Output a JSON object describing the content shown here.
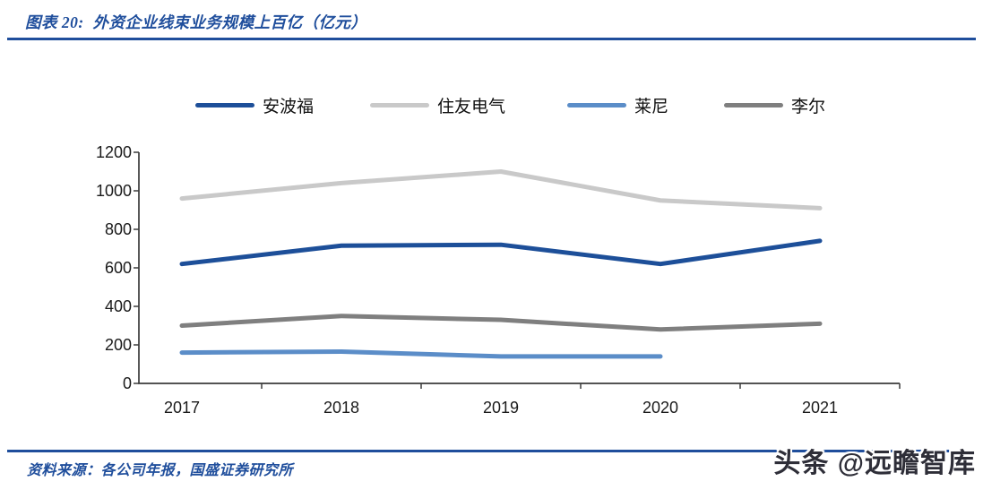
{
  "header": {
    "title": "图表 20:  外资企业线束业务规模上百亿（亿元）"
  },
  "footer": {
    "source": "资料来源：各公司年报，国盛证券研究所"
  },
  "watermark": {
    "text": "头条 @远瞻智库"
  },
  "colors": {
    "accent_blue": "#1F4E9C",
    "axis": "#3b3b3b",
    "watermark_text": "#2e2e38"
  },
  "chart_data": {
    "type": "line",
    "title": "外资企业线束业务规模上百亿（亿元）",
    "categories": [
      "2017",
      "2018",
      "2019",
      "2020",
      "2021"
    ],
    "series": [
      {
        "name": "安波福",
        "color": "#1D4F99",
        "values": [
          620,
          715,
          720,
          620,
          740
        ]
      },
      {
        "name": "住友电气",
        "color": "#C9C9C9",
        "values": [
          960,
          1040,
          1100,
          950,
          910
        ]
      },
      {
        "name": "莱尼",
        "color": "#5B8DC8",
        "values": [
          160,
          165,
          140,
          140,
          null
        ]
      },
      {
        "name": "李尔",
        "color": "#7F7F7F",
        "values": [
          300,
          350,
          330,
          280,
          310
        ]
      }
    ],
    "xlabel": "",
    "ylabel": "",
    "ylim": [
      0,
      1200
    ],
    "yticks": [
      0,
      200,
      400,
      600,
      800,
      1000,
      1200
    ],
    "grid": false,
    "legend_position": "top"
  }
}
